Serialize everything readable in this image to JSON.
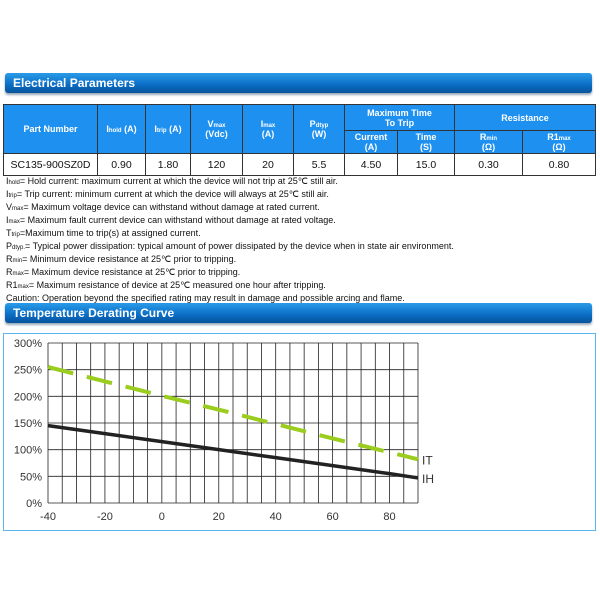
{
  "sections": {
    "electrical": "Electrical Parameters",
    "derating": "Temperature Derating Curve"
  },
  "table": {
    "headers": {
      "part": "Part Number",
      "ihold": "I",
      "ihold_sub": "hold",
      "ihold_unit": " (A)",
      "itrip": "I",
      "itrip_sub": "trip",
      "itrip_unit": " (A)",
      "vmax": "V",
      "vmax_sub": "max",
      "vmax_unit": "(Vdc)",
      "imax": "I",
      "imax_sub": "max",
      "imax_unit": "(A)",
      "pd": "P",
      "pd_sub": "dtyp",
      "pd_unit": "(W)",
      "maxtime": "Maximum Time To Trip",
      "current": "Current",
      "current_unit": "(A)",
      "time": "Time",
      "time_unit": "(S)",
      "resistance": "Resistance",
      "rmin": "R",
      "rmin_sub": "min",
      "rmin_unit": "(Ω)",
      "r1max": "R1",
      "r1max_sub": "max",
      "r1max_unit": "(Ω)"
    },
    "row": [
      "SC135-900SZ0D",
      "0.90",
      "1.80",
      "120",
      "20",
      "5.5",
      "4.50",
      "15.0",
      "0.30",
      "0.80"
    ]
  },
  "notes": [
    {
      "sym": "I",
      "sub": "hold",
      "text": "= Hold current: maximum current at which the device will not trip at 25℃  still air."
    },
    {
      "sym": "I",
      "sub": "trip",
      "text": "= Trip current: minimum current at which the device will always at 25℃  still air."
    },
    {
      "sym": "V",
      "sub": "max",
      "text": "= Maximum voltage device can withstand without damage at rated current."
    },
    {
      "sym": "I",
      "sub": "max",
      "text": "= Maximum fault current device can withstand without damage at rated voltage."
    },
    {
      "sym": "T",
      "sub": "trip",
      "text": "=Maximum time to trip(s) at assigned current."
    },
    {
      "sym": "P",
      "sub": "dtyp.",
      "text": "= Typical power dissipation: typical amount of power dissipated by the device when in state air environment."
    },
    {
      "sym": "R",
      "sub": "min",
      "text": "= Minimum device resistance at 25℃  prior to tripping."
    },
    {
      "sym": "R",
      "sub": "max",
      "text": "= Maximum device resistance at 25℃  prior to tripping."
    },
    {
      "sym": "R1",
      "sub": "max",
      "text": "= Maximum resistance of device at 25℃  measured one hour after tripping."
    },
    {
      "sym": "",
      "sub": "",
      "text": "Caution: Operation beyond the specified rating may result in damage and possible arcing and flame."
    }
  ],
  "chart_data": {
    "type": "line",
    "xlim": [
      -40,
      90
    ],
    "ylim": [
      0,
      300
    ],
    "xticks": [
      "-40",
      "-20",
      "0",
      "20",
      "40",
      "60",
      "80"
    ],
    "yticks": [
      "0%",
      "50%",
      "100%",
      "150%",
      "200%",
      "250%",
      "300%"
    ],
    "grid": true,
    "series": [
      {
        "name": "IT",
        "style": "dashed",
        "color": "#9acd1e",
        "x": [
          -40,
          -20,
          0,
          20,
          40,
          60,
          90
        ],
        "y": [
          255,
          228,
          201,
          175,
          148,
          121,
          82
        ]
      },
      {
        "name": "IH",
        "style": "solid",
        "color": "#222222",
        "x": [
          -40,
          -20,
          0,
          20,
          40,
          60,
          80,
          90
        ],
        "y": [
          145,
          130,
          115,
          100,
          85,
          70,
          55,
          47
        ]
      }
    ]
  }
}
